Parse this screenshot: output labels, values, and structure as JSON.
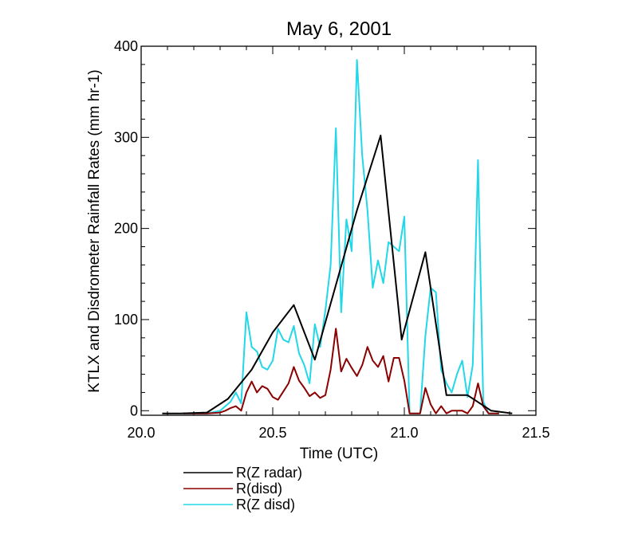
{
  "chart_data": {
    "type": "line",
    "title": "May 6, 2001",
    "xlabel": "Time (UTC)",
    "ylabel": "KTLX and Disdrometer Rainfall Rates (mm hr-1)",
    "xlim": [
      20.0,
      21.5
    ],
    "ylim": [
      -5,
      400
    ],
    "xticks": [
      20.0,
      20.5,
      21.0,
      21.5
    ],
    "xtick_labels": [
      "20.0",
      "20.5",
      "21.0",
      "21.5"
    ],
    "yticks": [
      0,
      100,
      200,
      300,
      400
    ],
    "ytick_labels": [
      "0",
      "100",
      "200",
      "300",
      "400"
    ],
    "grid": false,
    "legend_position": "below",
    "series": [
      {
        "name": "R(Z radar)",
        "color": "#000000",
        "x": [
          20.08,
          20.15,
          20.25,
          20.33,
          20.42,
          20.5,
          20.58,
          20.66,
          20.74,
          20.82,
          20.91,
          20.99,
          21.08,
          21.16,
          21.24,
          21.33,
          21.41
        ],
        "y": [
          -3,
          -3,
          -2,
          13,
          45,
          86,
          116,
          56,
          138,
          220,
          302,
          78,
          174,
          17,
          17,
          0,
          -3
        ]
      },
      {
        "name": "R(disd)",
        "color": "#8b0000",
        "x": [
          20.16,
          20.2,
          20.25,
          20.3,
          20.32,
          20.34,
          20.36,
          20.38,
          20.4,
          20.42,
          20.44,
          20.46,
          20.48,
          20.5,
          20.52,
          20.54,
          20.56,
          20.58,
          20.6,
          20.62,
          20.64,
          20.66,
          20.68,
          20.7,
          20.72,
          20.74,
          20.76,
          20.78,
          20.8,
          20.82,
          20.84,
          20.86,
          20.88,
          20.9,
          20.92,
          20.94,
          20.96,
          20.98,
          21.0,
          21.02,
          21.04,
          21.06,
          21.08,
          21.1,
          21.12,
          21.14,
          21.16,
          21.18,
          21.2,
          21.22,
          21.24,
          21.26,
          21.28,
          21.3,
          21.32,
          21.36
        ],
        "y": [
          -3,
          -3,
          -3,
          -2,
          0,
          3,
          5,
          0,
          20,
          32,
          20,
          27,
          24,
          15,
          12,
          21,
          30,
          48,
          33,
          25,
          16,
          20,
          14,
          17,
          45,
          90,
          43,
          57,
          47,
          38,
          50,
          70,
          55,
          48,
          60,
          32,
          58,
          58,
          33,
          -3,
          -3,
          -3,
          25,
          7,
          -3,
          5,
          -3,
          0,
          0,
          0,
          -3,
          5,
          30,
          5,
          -3,
          -3
        ]
      },
      {
        "name": "R(Z disd)",
        "color": "#22d8e8",
        "x": [
          20.16,
          20.2,
          20.25,
          20.3,
          20.32,
          20.34,
          20.36,
          20.38,
          20.4,
          20.42,
          20.44,
          20.46,
          20.48,
          20.5,
          20.52,
          20.54,
          20.56,
          20.58,
          20.6,
          20.62,
          20.64,
          20.66,
          20.68,
          20.7,
          20.72,
          20.74,
          20.76,
          20.78,
          20.8,
          20.82,
          20.84,
          20.86,
          20.88,
          20.9,
          20.92,
          20.94,
          20.96,
          20.98,
          21.0,
          21.02,
          21.04,
          21.06,
          21.08,
          21.1,
          21.12,
          21.14,
          21.16,
          21.18,
          21.2,
          21.22,
          21.24,
          21.26,
          21.28,
          21.3,
          21.32,
          21.36
        ],
        "y": [
          -3,
          -3,
          -3,
          0,
          5,
          10,
          20,
          8,
          108,
          70,
          65,
          48,
          45,
          55,
          90,
          78,
          75,
          93,
          63,
          50,
          30,
          95,
          70,
          110,
          160,
          310,
          108,
          210,
          175,
          385,
          280,
          220,
          135,
          165,
          140,
          185,
          180,
          175,
          213,
          -3,
          -3,
          -3,
          82,
          135,
          130,
          45,
          30,
          20,
          40,
          55,
          15,
          50,
          275,
          10,
          -3,
          -3
        ]
      }
    ]
  }
}
